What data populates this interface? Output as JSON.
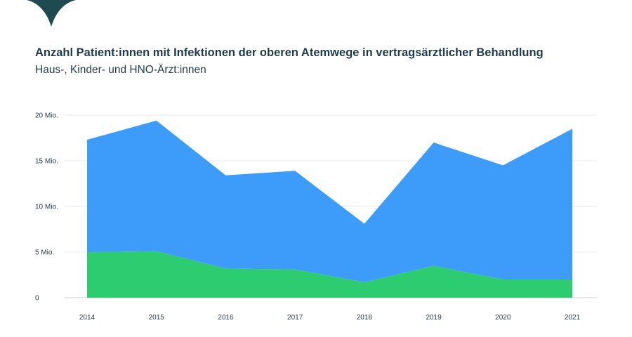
{
  "header": {
    "title": "Anzahl Patient:innen mit Infektionen der oberen Atemwege in vertragsärztlicher Behandlung",
    "subtitle": "Haus-, Kinder- und HNO-Ärzt:innen"
  },
  "logo": {
    "icon": "logo-mark-icon",
    "color": "#1f4a52"
  },
  "chart_data": {
    "type": "area",
    "stacked": true,
    "title": "Anzahl Patient:innen mit Infektionen der oberen Atemwege in vertragsärztlicher Behandlung",
    "subtitle": "Haus-, Kinder- und HNO-Ärzt:innen",
    "xlabel": "",
    "ylabel": "",
    "categories": [
      "2014",
      "2015",
      "2016",
      "2017",
      "2018",
      "2019",
      "2020",
      "2021"
    ],
    "series": [
      {
        "color": "#2ecc71",
        "values": [
          5.0,
          5.1,
          3.2,
          3.1,
          1.7,
          3.5,
          2.0,
          2.0
        ]
      },
      {
        "color": "#3d9bfa",
        "values": [
          12.3,
          14.3,
          10.2,
          10.8,
          6.4,
          13.5,
          12.5,
          16.5
        ]
      }
    ],
    "ylim": [
      0,
      20
    ],
    "yticks": [
      {
        "value": 0,
        "label": "0"
      },
      {
        "value": 5,
        "label": "5 Mio."
      },
      {
        "value": 10,
        "label": "10 Mio."
      },
      {
        "value": 15,
        "label": "15 Mio."
      },
      {
        "value": 20,
        "label": "20 Mio."
      }
    ],
    "grid": true,
    "legend": "none"
  }
}
